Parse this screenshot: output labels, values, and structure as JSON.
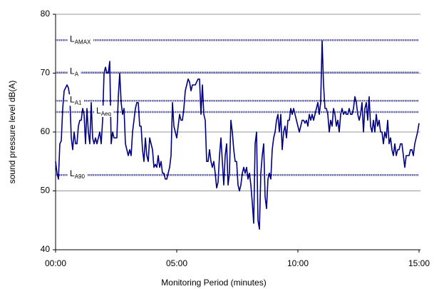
{
  "chart_data": {
    "type": "line",
    "xlabel": "Monitoring Period (minutes)",
    "ylabel": "sound pressure level dB(A)",
    "xlim": [
      0,
      15
    ],
    "ylim": [
      40,
      80
    ],
    "xticks": [
      {
        "value": 0,
        "label": "00:00"
      },
      {
        "value": 5,
        "label": "05:00"
      },
      {
        "value": 10,
        "label": "10:00"
      },
      {
        "value": 15,
        "label": "15:00"
      }
    ],
    "yticks": [
      40,
      50,
      60,
      70,
      80
    ],
    "grid": true,
    "reference_color": "#4b4ba6",
    "reference_lines": [
      {
        "label": "L",
        "sub": "AMAX",
        "value": 75.6
      },
      {
        "label": "L",
        "sub": "A",
        "value": 70.1
      },
      {
        "label": "L",
        "sub": "A1",
        "value": 65.3
      },
      {
        "label": "L",
        "sub": "Aeq",
        "value": 63.4
      },
      {
        "label": "L",
        "sub": "A90",
        "value": 52.7
      }
    ],
    "series": [
      {
        "color": "#000080",
        "x": [
          0,
          0.059,
          0.118,
          0.176,
          0.235,
          0.294,
          0.353,
          0.412,
          0.471,
          0.529,
          0.588,
          0.647,
          0.706,
          0.765,
          0.824,
          0.882,
          0.941,
          1,
          1.059,
          1.118,
          1.176,
          1.235,
          1.294,
          1.353,
          1.412,
          1.471,
          1.529,
          1.588,
          1.647,
          1.706,
          1.765,
          1.824,
          1.882,
          1.941,
          2,
          2.059,
          2.118,
          2.176,
          2.235,
          2.294,
          2.353,
          2.412,
          2.471,
          2.529,
          2.588,
          2.647,
          2.706,
          2.765,
          2.824,
          2.882,
          2.941,
          3,
          3.059,
          3.118,
          3.176,
          3.235,
          3.294,
          3.353,
          3.412,
          3.471,
          3.529,
          3.588,
          3.647,
          3.706,
          3.765,
          3.824,
          3.882,
          3.941,
          4,
          4.059,
          4.118,
          4.176,
          4.235,
          4.294,
          4.353,
          4.412,
          4.471,
          4.529,
          4.588,
          4.647,
          4.706,
          4.765,
          4.824,
          4.882,
          4.941,
          5,
          5.059,
          5.118,
          5.176,
          5.235,
          5.294,
          5.353,
          5.412,
          5.471,
          5.529,
          5.588,
          5.647,
          5.706,
          5.765,
          5.824,
          5.882,
          5.941,
          6,
          6.059,
          6.118,
          6.176,
          6.235,
          6.294,
          6.353,
          6.412,
          6.471,
          6.529,
          6.588,
          6.647,
          6.706,
          6.765,
          6.824,
          6.882,
          6.941,
          7,
          7.059,
          7.118,
          7.176,
          7.235,
          7.294,
          7.353,
          7.412,
          7.471,
          7.529,
          7.588,
          7.647,
          7.706,
          7.765,
          7.824,
          7.882,
          7.941,
          8,
          8.059,
          8.118,
          8.176,
          8.235,
          8.294,
          8.353,
          8.412,
          8.471,
          8.529,
          8.588,
          8.647,
          8.706,
          8.765,
          8.824,
          8.882,
          8.941,
          9,
          9.059,
          9.118,
          9.176,
          9.235,
          9.294,
          9.353,
          9.412,
          9.471,
          9.529,
          9.588,
          9.647,
          9.706,
          9.765,
          9.824,
          9.882,
          9.941,
          10,
          10.059,
          10.118,
          10.176,
          10.235,
          10.294,
          10.353,
          10.412,
          10.471,
          10.529,
          10.588,
          10.647,
          10.706,
          10.765,
          10.824,
          10.882,
          10.941,
          11,
          11.059,
          11.118,
          11.176,
          11.235,
          11.294,
          11.353,
          11.412,
          11.471,
          11.529,
          11.588,
          11.647,
          11.706,
          11.765,
          11.824,
          11.882,
          11.941,
          12,
          12.059,
          12.118,
          12.176,
          12.235,
          12.294,
          12.353,
          12.412,
          12.471,
          12.529,
          12.588,
          12.647,
          12.706,
          12.765,
          12.824,
          12.882,
          12.941,
          13,
          13.059,
          13.118,
          13.176,
          13.235,
          13.294,
          13.353,
          13.412,
          13.471,
          13.529,
          13.588,
          13.647,
          13.706,
          13.765,
          13.824,
          13.882,
          13.941,
          14,
          14.059,
          14.118,
          14.176,
          14.235,
          14.294,
          14.353,
          14.412,
          14.471,
          14.529,
          14.588,
          14.647,
          14.706,
          14.765,
          14.824,
          14.882,
          14.941,
          15
        ],
        "values": [
          55,
          53,
          52,
          58,
          58.5,
          64,
          67,
          67.5,
          68,
          67.5,
          66,
          59,
          57,
          60,
          58,
          58,
          61,
          62,
          62,
          64,
          63,
          58,
          64,
          60,
          58,
          65,
          59,
          58,
          59,
          58,
          59,
          60,
          58,
          62,
          70,
          71,
          70,
          70,
          72,
          58,
          60,
          59,
          59,
          59,
          66,
          70,
          65,
          63,
          64,
          58,
          57,
          56,
          57,
          56,
          60,
          62,
          64,
          65,
          65,
          61,
          61,
          57,
          55,
          59,
          56,
          55,
          59,
          58,
          57,
          54,
          54.5,
          54,
          56,
          54,
          55,
          53,
          53,
          52,
          52,
          53,
          54,
          56,
          65,
          61,
          60,
          59,
          61,
          63,
          62,
          62,
          64,
          67,
          68,
          69,
          68.5,
          67,
          68,
          68,
          68,
          68.5,
          69,
          69,
          63,
          68,
          63,
          62,
          55,
          55,
          57,
          55,
          54,
          55,
          53,
          50.5,
          51.5,
          56,
          59,
          55,
          51,
          56,
          58,
          51,
          53,
          62,
          60,
          57,
          55,
          55,
          51,
          50,
          51,
          53,
          54,
          53,
          54,
          52,
          53,
          51,
          48,
          44.5,
          58,
          60,
          45,
          43.5,
          53,
          56,
          58,
          49,
          47,
          52,
          53,
          52,
          57,
          59,
          60,
          62,
          63,
          60,
          63,
          57,
          60,
          61,
          59,
          62,
          62,
          64,
          63,
          64,
          63,
          62,
          61,
          60,
          61,
          62,
          62,
          61.5,
          62,
          61,
          63,
          62,
          63,
          62,
          63,
          64,
          65,
          63,
          65,
          75.5,
          68,
          64,
          64,
          63,
          60,
          62,
          61,
          64,
          63,
          61,
          62,
          60,
          63,
          64,
          63,
          63.5,
          63,
          63,
          64,
          63,
          63,
          64,
          66,
          65,
          63,
          62,
          63,
          65,
          60,
          64,
          65,
          62,
          66,
          61,
          60,
          62,
          60,
          63,
          61,
          62,
          60,
          60,
          58,
          60,
          59,
          62,
          58,
          59,
          57,
          56,
          58,
          56,
          57,
          57,
          58,
          58,
          56,
          54,
          56,
          56,
          56,
          57,
          57,
          56,
          58,
          59,
          60,
          61.5
        ]
      }
    ]
  }
}
